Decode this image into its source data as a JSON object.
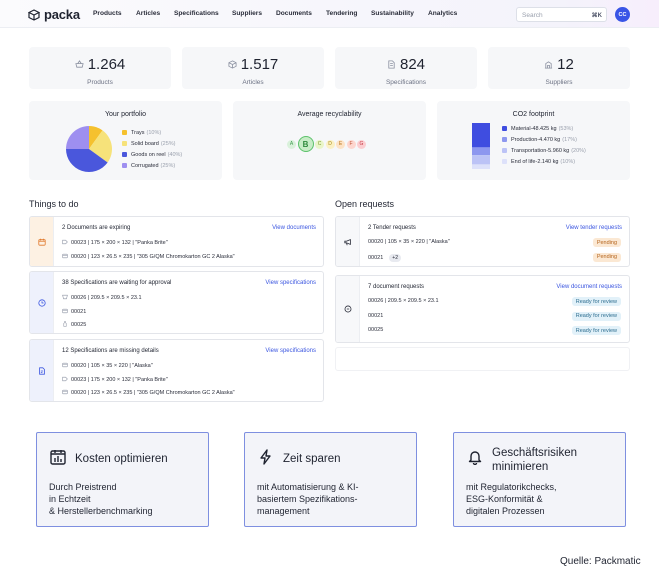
{
  "app": {
    "name": "packa"
  },
  "nav": [
    "Products",
    "Articles",
    "Specifications",
    "Suppliers",
    "Documents",
    "Tendering",
    "Sustainability",
    "Analytics"
  ],
  "search": {
    "placeholder": "Search",
    "shortcut": "⌘K"
  },
  "user": {
    "initials": "CC"
  },
  "stats": [
    {
      "value": "1.264",
      "label": "Products",
      "icon": "basket-icon"
    },
    {
      "value": "1.517",
      "label": "Articles",
      "icon": "box-icon"
    },
    {
      "value": "824",
      "label": "Specifications",
      "icon": "document-icon"
    },
    {
      "value": "12",
      "label": "Suppliers",
      "icon": "supplier-icon"
    }
  ],
  "portfolio": {
    "title": "Your portfolio",
    "items": [
      {
        "label": "Trays",
        "pct": "(10%)",
        "value": 10,
        "color": "#f5c12e"
      },
      {
        "label": "Solid board",
        "pct": "(25%)",
        "value": 25,
        "color": "#f6e27a"
      },
      {
        "label": "Goods on reel",
        "pct": "(40%)",
        "value": 40,
        "color": "#4a57dc"
      },
      {
        "label": "Corrugated",
        "pct": "(25%)",
        "value": 25,
        "color": "#9e8ff0"
      }
    ]
  },
  "recyclability": {
    "title": "Average recyclability",
    "grades": [
      "A",
      "B",
      "C",
      "D",
      "E",
      "F",
      "G"
    ],
    "selected": "B",
    "colors": [
      "#d9f1db",
      "#c7ecc6",
      "#e9f5c8",
      "#fbf0c4",
      "#fde3c6",
      "#fdd6cf",
      "#fbcdd0"
    ],
    "text_colors": [
      "#3d9a4f",
      "#2f8a3d",
      "#7a9a2a",
      "#a48a12",
      "#b8751d",
      "#c0563a",
      "#c43b46"
    ]
  },
  "co2": {
    "title": "CO2 footprint",
    "items": [
      {
        "label": "Material",
        "value": "48.425 kg",
        "pct": "(53%)",
        "share": 53,
        "color": "#3f4de0"
      },
      {
        "label": "Production",
        "value": "4.470 kg",
        "pct": "(17%)",
        "share": 17,
        "color": "#8d97ef"
      },
      {
        "label": "Transportation",
        "value": "5.960 kg",
        "pct": "(20%)",
        "share": 20,
        "color": "#bcc3f6"
      },
      {
        "label": "End of life",
        "value": "2.140 kg",
        "pct": "(10%)",
        "share": 10,
        "color": "#dde1fa"
      }
    ]
  },
  "todo": {
    "title": "Things to do",
    "panels": [
      {
        "heading": "2 Documents are expiring",
        "link": "View documents",
        "icon": "calendar-alert-icon",
        "accent": "#fdf1e3",
        "rows": [
          {
            "icon": "tag-icon",
            "text": "00023 | 175 × 200 × 132 | \"Panka Brite\""
          },
          {
            "icon": "layers-icon",
            "text": "00020 | 123 × 26.5 × 235 | \"305 G/QM Chromokarton GC 2 Alaska\""
          }
        ]
      },
      {
        "heading": "38 Specifications are waiting for approval",
        "link": "View specifications",
        "icon": "clock-icon",
        "accent": "#eef1fc",
        "rows": [
          {
            "icon": "cup-icon",
            "text": "00026 | 209.5 × 209.5 × 23.1"
          },
          {
            "icon": "layers-icon",
            "text": "00021"
          },
          {
            "icon": "bottle-icon",
            "text": "00025"
          }
        ]
      },
      {
        "heading": "12 Specifications are missing details",
        "link": "View specifications",
        "icon": "document-edit-icon",
        "accent": "#eef1fc",
        "rows": [
          {
            "icon": "layers-icon",
            "text": "00020 | 105 × 35 × 220 | \"Alaska\""
          },
          {
            "icon": "tag-icon",
            "text": "00023 | 175 × 200 × 132 | \"Panka Brite\""
          },
          {
            "icon": "layers-icon",
            "text": "00020 | 123 × 26.5 × 235 | \"305 G/QM Chromokarton GC 2 Alaska\""
          }
        ]
      }
    ]
  },
  "requests": {
    "title": "Open requests",
    "panels": [
      {
        "heading": "2 Tender requests",
        "link": "View tender requests",
        "icon": "megaphone-icon",
        "rows": [
          {
            "text": "00020 | 105 × 35 × 220 | \"Alaska\"",
            "badge": "Pending",
            "chip": ""
          },
          {
            "text": "00021",
            "badge": "Pending",
            "chip": "+2"
          }
        ]
      },
      {
        "heading": "7 document requests",
        "link": "View document requests",
        "icon": "chat-icon",
        "rows": [
          {
            "text": "00026 | 209.5 × 209.5 × 23.1",
            "badge": "Ready for review",
            "chip": ""
          },
          {
            "text": "00021",
            "badge": "Ready for review",
            "chip": ""
          },
          {
            "text": "00025",
            "badge": "Ready for review",
            "chip": ""
          }
        ]
      }
    ]
  },
  "features": [
    {
      "title": "Kosten optimieren",
      "desc": "Durch Preistrend\nin Echtzeit\n& Herstellerbenchmarking",
      "icon": "calendar-chart-icon"
    },
    {
      "title": "Zeit sparen",
      "desc": "mit Automatisierung & KI-\nbasiertem Spezifikations-\nmanagement",
      "icon": "lightning-icon"
    },
    {
      "title": "Geschäftsrisiken\nminimieren",
      "desc": "mit Regulatorikchecks,\nESG-Konformität &\ndigitalen Prozessen",
      "icon": "bell-icon"
    }
  ],
  "source": "Quelle: Packmatic"
}
